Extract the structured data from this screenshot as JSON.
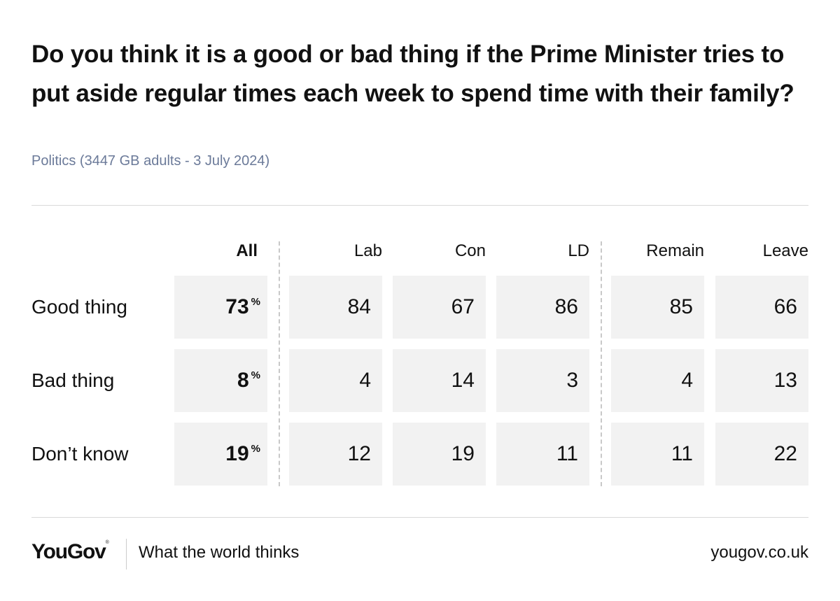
{
  "header": {
    "title": "Do you think it is a good or bad thing if the Prime Minister tries to put aside regular times each week to spend time with their family?",
    "subtitle": "Politics (3447 GB adults - 3 July 2024)"
  },
  "chart_data": {
    "type": "table",
    "title": "Do you think it is a good or bad thing if the Prime Minister tries to put aside regular times each week to spend time with their family?",
    "subtitle": "Politics (3447 GB adults - 3 July 2024)",
    "unit": "%",
    "columns": [
      "All",
      "Lab",
      "Con",
      "LD",
      "Remain",
      "Leave"
    ],
    "rows": [
      {
        "label": "Good thing",
        "values": [
          73,
          84,
          67,
          86,
          85,
          66
        ]
      },
      {
        "label": "Bad thing",
        "values": [
          8,
          4,
          14,
          3,
          4,
          13
        ]
      },
      {
        "label": "Don’t know",
        "values": [
          19,
          12,
          19,
          11,
          11,
          22
        ]
      }
    ]
  },
  "footer": {
    "brand": "YouGov",
    "brand_mark": "®",
    "tagline": "What the world thinks",
    "website": "yougov.co.uk"
  }
}
